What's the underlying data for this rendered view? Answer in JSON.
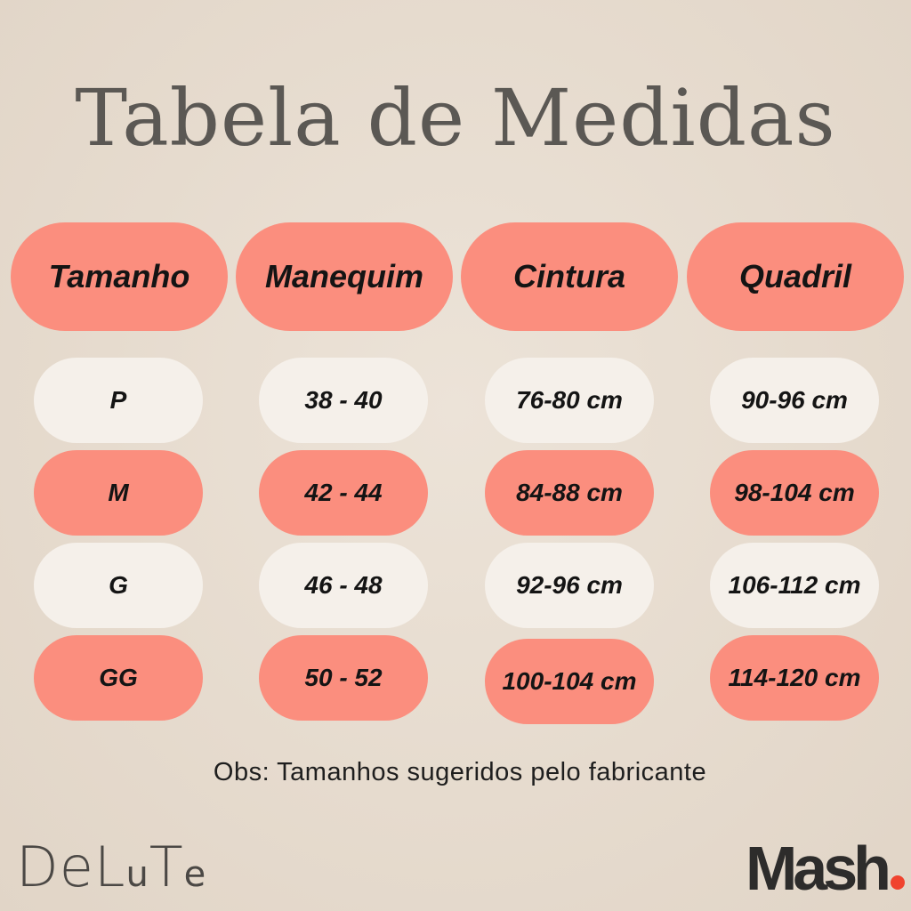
{
  "title": "Tabela de Medidas",
  "table": {
    "headers": [
      "Tamanho",
      "Manequim",
      "Cintura",
      "Quadril"
    ],
    "rows": [
      [
        "P",
        "38 - 40",
        "76-80 cm",
        "90-96 cm"
      ],
      [
        "M",
        "42 - 44",
        "84-88 cm",
        "98-104 cm"
      ],
      [
        "G",
        "46 - 48",
        "92-96 cm",
        "106-112 cm"
      ],
      [
        "GG",
        "50 - 52",
        "100-104 cm",
        "114-120 cm"
      ]
    ]
  },
  "note": "Obs: Tamanhos sugeridos pelo fabricante",
  "logos": {
    "left": "DeLuTe",
    "right": "Mash"
  },
  "colors": {
    "background": "#e6dbce",
    "header_pill": "#fb8e7e",
    "row_light": "#f5f0ea",
    "row_coral": "#fb8e7e",
    "title_text": "#5b5854",
    "mash_dot": "#f0432e"
  }
}
